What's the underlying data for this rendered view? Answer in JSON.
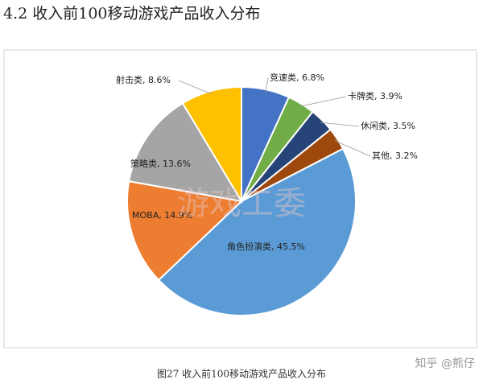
{
  "header": {
    "title": "4.2  收入前100移动游戏产品收入分布"
  },
  "chart_data": {
    "type": "pie",
    "values": [
      6.8,
      3.9,
      3.5,
      3.2,
      45.5,
      14.9,
      13.6,
      8.6
    ],
    "value_labels": [
      "竞速类, 6.8%",
      "卡牌类, 3.9%",
      "休闲类, 3.5%",
      "其他, 3.2%",
      "角色扮演类, 45.5%",
      "MOBA, 14.9%",
      "策略类, 13.6%",
      "射击类, 8.6%"
    ],
    "colors": [
      "#4472c4",
      "#70ad47",
      "#264478",
      "#9e480e",
      "#5b9bd5",
      "#ed7d31",
      "#a5a5a5",
      "#ffc000"
    ]
  },
  "watermark": "游戏工委",
  "caption": "图27  收入前100移动游戏产品收入分布",
  "credit": "知乎 @熊仔"
}
